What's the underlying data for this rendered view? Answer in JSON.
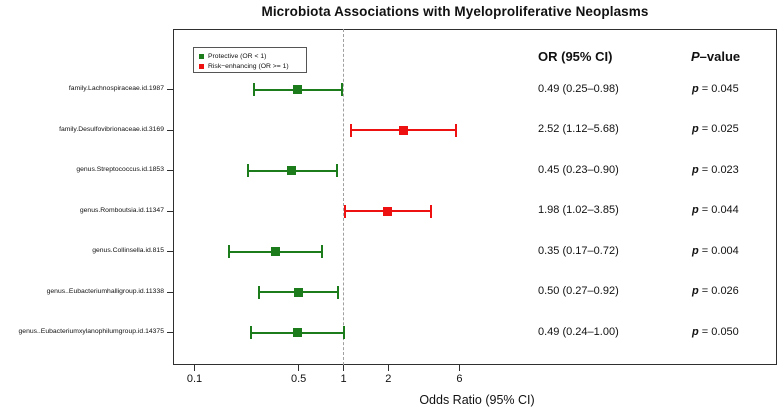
{
  "chart_data": {
    "type": "forest-plot",
    "title": "Microbiota Associations with Myeloproliferative Neoplasms",
    "xlabel": "Odds Ratio (95% CI)",
    "x_scale": "log10",
    "x_ticks": [
      "0.1",
      "0.5",
      "1",
      "2",
      "6"
    ],
    "x_tick_values": [
      0.1,
      0.5,
      1,
      2,
      6
    ],
    "x_range": [
      0.07,
      8
    ],
    "reference_line": 1,
    "grid": false,
    "legend_position": "top-left",
    "legend": [
      {
        "label": "Protective (OR < 1)",
        "color": "#1c7c1c"
      },
      {
        "label": "Risk−enhancing (OR >= 1)",
        "color": "#ee1111"
      }
    ],
    "columns": {
      "or_header": "OR (95% CI)",
      "p_header_italic": "P",
      "p_header_rest": "–value"
    },
    "rows": [
      {
        "label": "family.Lachnospiraceae.id.1987",
        "or": 0.49,
        "ci_low": 0.25,
        "ci_high": 0.98,
        "or_text": "0.49 (0.25–0.98)",
        "p_symbol": "p",
        "p_text": "= 0.045",
        "direction": "protective"
      },
      {
        "label": "family.Desulfovibrionaceae.id.3169",
        "or": 2.52,
        "ci_low": 1.12,
        "ci_high": 5.68,
        "or_text": "2.52 (1.12–5.68)",
        "p_symbol": "p",
        "p_text": "= 0.025",
        "direction": "risk"
      },
      {
        "label": "genus.Streptococcus.id.1853",
        "or": 0.45,
        "ci_low": 0.23,
        "ci_high": 0.9,
        "or_text": "0.45 (0.23–0.90)",
        "p_symbol": "p",
        "p_text": "= 0.023",
        "direction": "protective"
      },
      {
        "label": "genus.Romboutsia.id.11347",
        "or": 1.98,
        "ci_low": 1.02,
        "ci_high": 3.85,
        "or_text": "1.98 (1.02–3.85)",
        "p_symbol": "p",
        "p_text": "= 0.044",
        "direction": "risk"
      },
      {
        "label": "genus.Collinsella.id.815",
        "or": 0.35,
        "ci_low": 0.17,
        "ci_high": 0.72,
        "or_text": "0.35 (0.17–0.72)",
        "p_symbol": "p",
        "p_text": "= 0.004",
        "direction": "protective"
      },
      {
        "label": "genus..Eubacteriumhalligroup.id.11338",
        "or": 0.5,
        "ci_low": 0.27,
        "ci_high": 0.92,
        "or_text": "0.50 (0.27–0.92)",
        "p_symbol": "p",
        "p_text": "= 0.026",
        "direction": "protective"
      },
      {
        "label": "genus..Eubacteriumxylanophilumgroup.id.14375",
        "or": 0.49,
        "ci_low": 0.24,
        "ci_high": 1.0,
        "or_text": "0.49 (0.24–1.00)",
        "p_symbol": "p",
        "p_text": "= 0.050",
        "direction": "protective"
      }
    ],
    "colors": {
      "protective": "#1c7c1c",
      "risk": "#ee1111"
    }
  }
}
